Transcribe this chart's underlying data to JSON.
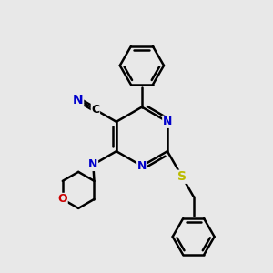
{
  "bg_color": "#e8e8e8",
  "bond_color": "#000000",
  "N_color": "#0000cc",
  "O_color": "#cc0000",
  "S_color": "#bbbb00",
  "line_width": 1.8,
  "dbo": 0.12,
  "figsize": [
    3.0,
    3.0
  ],
  "dpi": 100,
  "xlim": [
    0,
    10
  ],
  "ylim": [
    0,
    10
  ],
  "font_size": 9
}
